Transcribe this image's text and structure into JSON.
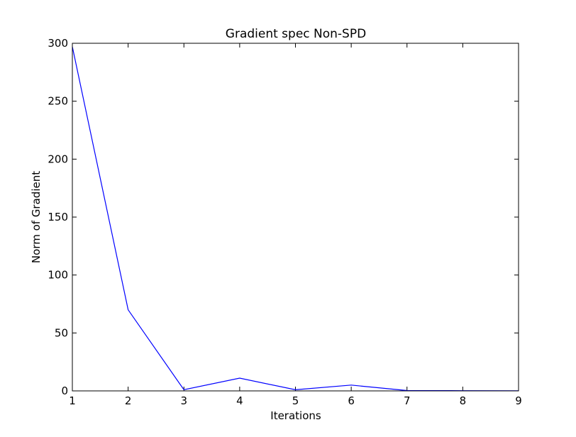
{
  "chart_data": {
    "type": "line",
    "title": "Gradient spec Non-SPD",
    "xlabel": "Iterations",
    "ylabel": "Norm of Gradient",
    "xlim": [
      1,
      9
    ],
    "ylim": [
      0,
      300
    ],
    "xticks": [
      1,
      2,
      3,
      4,
      5,
      6,
      7,
      8,
      9
    ],
    "yticks": [
      0,
      50,
      100,
      150,
      200,
      250,
      300
    ],
    "grid": false,
    "series": [
      {
        "color": "#0000ff",
        "x": [
          1,
          2,
          3,
          4,
          5,
          6,
          7,
          8,
          9
        ],
        "y": [
          297,
          70,
          1,
          11,
          1,
          5,
          0.3,
          0.2,
          0.1
        ]
      }
    ]
  }
}
